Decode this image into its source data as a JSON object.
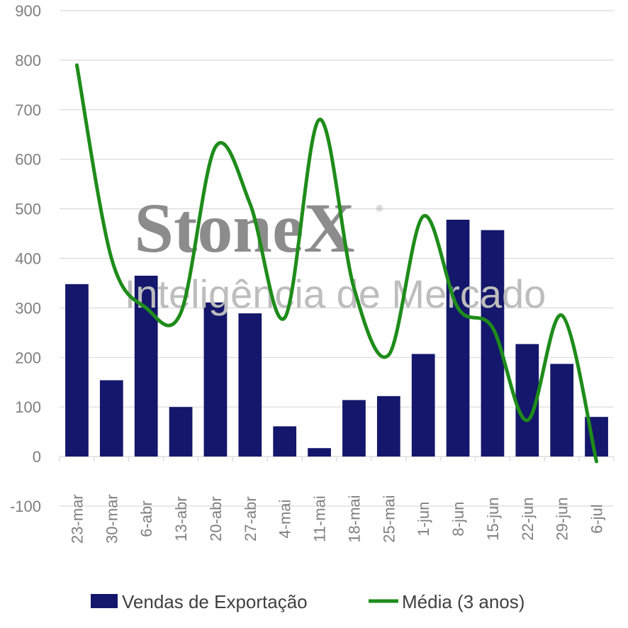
{
  "watermark": {
    "brand": "StoneX",
    "registered": "®",
    "tagline": "Inteligência de Mercado"
  },
  "chart_data": {
    "type": "bar",
    "title": "",
    "xlabel": "",
    "ylabel": "",
    "ylim": [
      -100,
      900
    ],
    "yticks": [
      -100,
      0,
      100,
      200,
      300,
      400,
      500,
      600,
      700,
      800,
      900
    ],
    "grid": true,
    "legend_position": "bottom",
    "categories": [
      "23-mar",
      "30-mar",
      "6-abr",
      "13-abr",
      "20-abr",
      "27-abr",
      "4-mai",
      "11-mai",
      "18-mai",
      "25-mai",
      "1-jun",
      "8-jun",
      "15-jun",
      "22-jun",
      "29-jun",
      "6-jul"
    ],
    "series": [
      {
        "name": "Vendas de Exportação",
        "type": "bar",
        "color": "#14176b",
        "values": [
          348,
          154,
          365,
          100,
          311,
          289,
          61,
          17,
          114,
          122,
          207,
          478,
          457,
          227,
          187,
          80
        ]
      },
      {
        "name": "Média (3 anos)",
        "type": "line",
        "smooth": true,
        "color": "#1e8c1a",
        "values": [
          790,
          400,
          300,
          290,
          625,
          510,
          280,
          680,
          340,
          205,
          485,
          300,
          260,
          73,
          285,
          -10
        ]
      }
    ]
  }
}
